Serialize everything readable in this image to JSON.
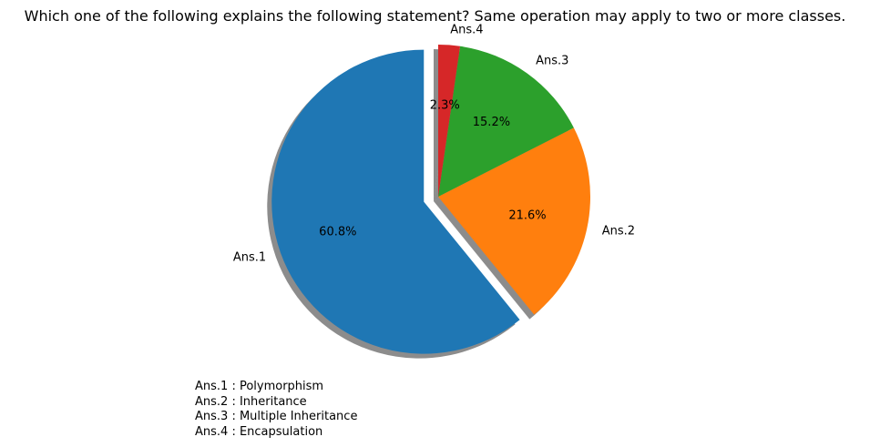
{
  "chart_data": {
    "type": "pie",
    "title": "Which one of the following explains the following statement? Same operation may apply to two or more classes.",
    "categories": [
      "Ans.1",
      "Ans.2",
      "Ans.3",
      "Ans.4"
    ],
    "values": [
      60.8,
      21.6,
      15.2,
      2.3
    ],
    "value_labels": [
      "60.8%",
      "21.6%",
      "15.2%",
      "2.3%"
    ],
    "colors": [
      "#1f77b4",
      "#ff7f0e",
      "#2ca02c",
      "#d62728"
    ],
    "exploded": [
      true,
      false,
      false,
      false
    ],
    "shadow": true,
    "start_angle_deg": 90,
    "notes": [
      "Ans.1 : Polymorphism",
      "Ans.2 : Inheritance",
      "Ans.3 : Multiple Inheritance",
      "Ans.4 : Encapsulation"
    ]
  }
}
